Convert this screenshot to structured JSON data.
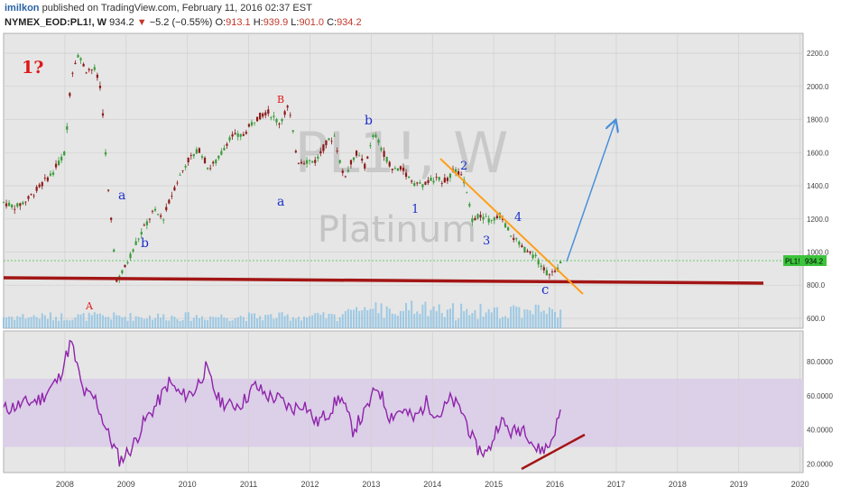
{
  "header": {
    "user": "imilkon",
    "published": "published on TradingView.com, February 11, 2016 02:37 EST",
    "symbol": "NYMEX_EOD:PL1!, W",
    "last": "934.2",
    "change_arrow": "▼",
    "change": "−5.2 (−0.55%)",
    "o_label": "O:",
    "o": "913.1",
    "h_label": "H:",
    "h": "939.9",
    "l_label": "L:",
    "l": "901.0",
    "c_label": "C:",
    "c": "934.2"
  },
  "watermark": {
    "ticker": "PL1!, W",
    "name": "Platinum"
  },
  "price_badge": {
    "label": "PL1!",
    "value": "934.2"
  },
  "colors": {
    "bg": "#e6e6e6",
    "up": "#3a9a3a",
    "down": "#8b1a1a",
    "volume": "#8fc3e3",
    "support": "#a31515",
    "trend": "#ff9f1a",
    "projection": "#4a90d9",
    "rsi": "#8e24aa",
    "rsi_band": "#dccfe8",
    "wave_red": "#e01818",
    "wave_blue": "#1a2fc8"
  },
  "annotations": {
    "question": "1?",
    "red_waves": [
      "A",
      "B"
    ],
    "blue_waves": [
      "a",
      "b",
      "a",
      "b",
      "1",
      "2",
      "3",
      "4",
      "c"
    ]
  },
  "chart_data": [
    {
      "type": "line",
      "title": "NYMEX_EOD:PL1!, W",
      "x_ticks": [
        "2008",
        "2009",
        "2010",
        "2011",
        "2012",
        "2013",
        "2014",
        "2015",
        "2016",
        "2017",
        "2018",
        "2019",
        "2020"
      ],
      "y_ticks": [
        "600.0",
        "800.0",
        "1000.0",
        "1200.0",
        "1400.0",
        "1600.0",
        "1800.0",
        "2000.0",
        "2200.0"
      ],
      "ylim": [
        540,
        2320
      ],
      "grid": true,
      "series": [
        {
          "x": [
            2007.0,
            2007.2,
            2007.4,
            2007.6,
            2007.8,
            2008.0,
            2008.1,
            2008.2,
            2008.35,
            2008.5,
            2008.6,
            2008.7,
            2008.85,
            2009.0,
            2009.15,
            2009.3,
            2009.45,
            2009.6,
            2009.8,
            2010.0,
            2010.2,
            2010.35,
            2010.5,
            2010.7,
            2010.9,
            2011.1,
            2011.3,
            2011.5,
            2011.65,
            2011.8,
            2011.9,
            2012.1,
            2012.25,
            2012.4,
            2012.55,
            2012.75,
            2012.9,
            2013.05,
            2013.2,
            2013.35,
            2013.5,
            2013.7,
            2013.85,
            2014.0,
            2014.2,
            2014.35,
            2014.5,
            2014.65,
            2014.8,
            2014.95,
            2015.1,
            2015.25,
            2015.4,
            2015.55,
            2015.7,
            2015.85,
            2016.0,
            2016.1
          ],
          "values": [
            1300,
            1270,
            1320,
            1400,
            1480,
            1600,
            2050,
            2200,
            2100,
            2100,
            1950,
            1400,
            820,
            920,
            1050,
            1150,
            1250,
            1200,
            1400,
            1550,
            1620,
            1500,
            1560,
            1700,
            1700,
            1800,
            1850,
            1780,
            1880,
            1550,
            1550,
            1550,
            1650,
            1700,
            1450,
            1600,
            1520,
            1720,
            1600,
            1500,
            1500,
            1420,
            1400,
            1440,
            1430,
            1490,
            1450,
            1200,
            1220,
            1180,
            1220,
            1120,
            1050,
            1000,
            960,
            880,
            870,
            934
          ]
        }
      ]
    },
    {
      "type": "line",
      "title": "RSI",
      "x_ticks": [
        "2008",
        "2009",
        "2010",
        "2011",
        "2012",
        "2013",
        "2014",
        "2015",
        "2016",
        "2017",
        "2018",
        "2019",
        "2020"
      ],
      "y_ticks": [
        "20.0000",
        "40.0000",
        "60.0000",
        "80.0000"
      ],
      "ylim": [
        15,
        98
      ],
      "band": [
        30,
        70
      ],
      "series": [
        {
          "x": [
            2007.0,
            2007.3,
            2007.6,
            2007.9,
            2008.1,
            2008.3,
            2008.5,
            2008.7,
            2008.9,
            2009.1,
            2009.3,
            2009.5,
            2009.7,
            2009.9,
            2010.1,
            2010.3,
            2010.5,
            2010.7,
            2010.9,
            2011.1,
            2011.3,
            2011.5,
            2011.7,
            2011.9,
            2012.1,
            2012.3,
            2012.5,
            2012.7,
            2012.9,
            2013.1,
            2013.3,
            2013.5,
            2013.7,
            2013.9,
            2014.1,
            2014.3,
            2014.5,
            2014.7,
            2014.9,
            2015.1,
            2015.3,
            2015.5,
            2015.7,
            2015.9,
            2016.1
          ],
          "values": [
            52,
            55,
            58,
            70,
            92,
            62,
            58,
            38,
            22,
            30,
            45,
            55,
            68,
            60,
            62,
            76,
            58,
            54,
            56,
            66,
            60,
            58,
            52,
            56,
            44,
            50,
            60,
            40,
            50,
            66,
            48,
            52,
            46,
            56,
            48,
            58,
            50,
            30,
            26,
            46,
            38,
            42,
            28,
            30,
            51
          ]
        }
      ]
    }
  ]
}
